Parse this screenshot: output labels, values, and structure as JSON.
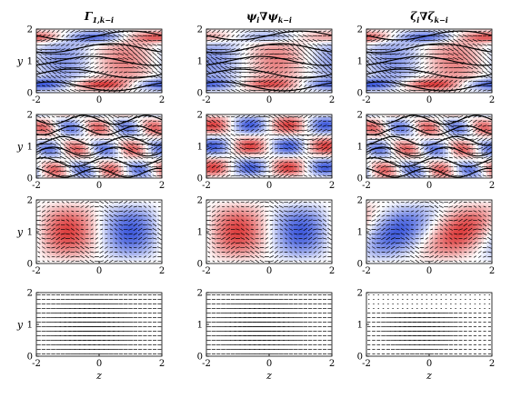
{
  "figure": {
    "column_titles": [
      {
        "main": "Γ",
        "sub": "1,k−i",
        "bold": true
      },
      {
        "main": "ψ",
        "sub": "i",
        "mid": "∇",
        "main2": "ψ",
        "sub2": "k−i",
        "bold": false
      },
      {
        "main": "ζ",
        "sub": "i",
        "mid": "∇",
        "main2": "ζ",
        "sub2": "k−i",
        "bold": true
      }
    ]
  },
  "chart_data": {
    "type": "heatmap",
    "description_rows": 4,
    "description_cols": 3,
    "xlabel": "z",
    "ylabel": "y",
    "xlim": [
      -2,
      2
    ],
    "ylim": [
      0,
      2
    ],
    "xticks": [
      "-2",
      "0",
      "2"
    ],
    "yticks": [
      "0",
      "1",
      "2"
    ],
    "colormap": {
      "negative": "#1f3fd6",
      "zero": "#ffffff",
      "positive": "#d81f1f"
    },
    "rows": [
      {
        "pattern": "bands-waves",
        "quiver_density": "high"
      },
      {
        "pattern": "multi-cell",
        "quiver_density": "high"
      },
      {
        "pattern": "large-cells",
        "quiver_density": "medium"
      },
      {
        "pattern": "vectors-only",
        "quiver_density": "medium"
      }
    ]
  }
}
